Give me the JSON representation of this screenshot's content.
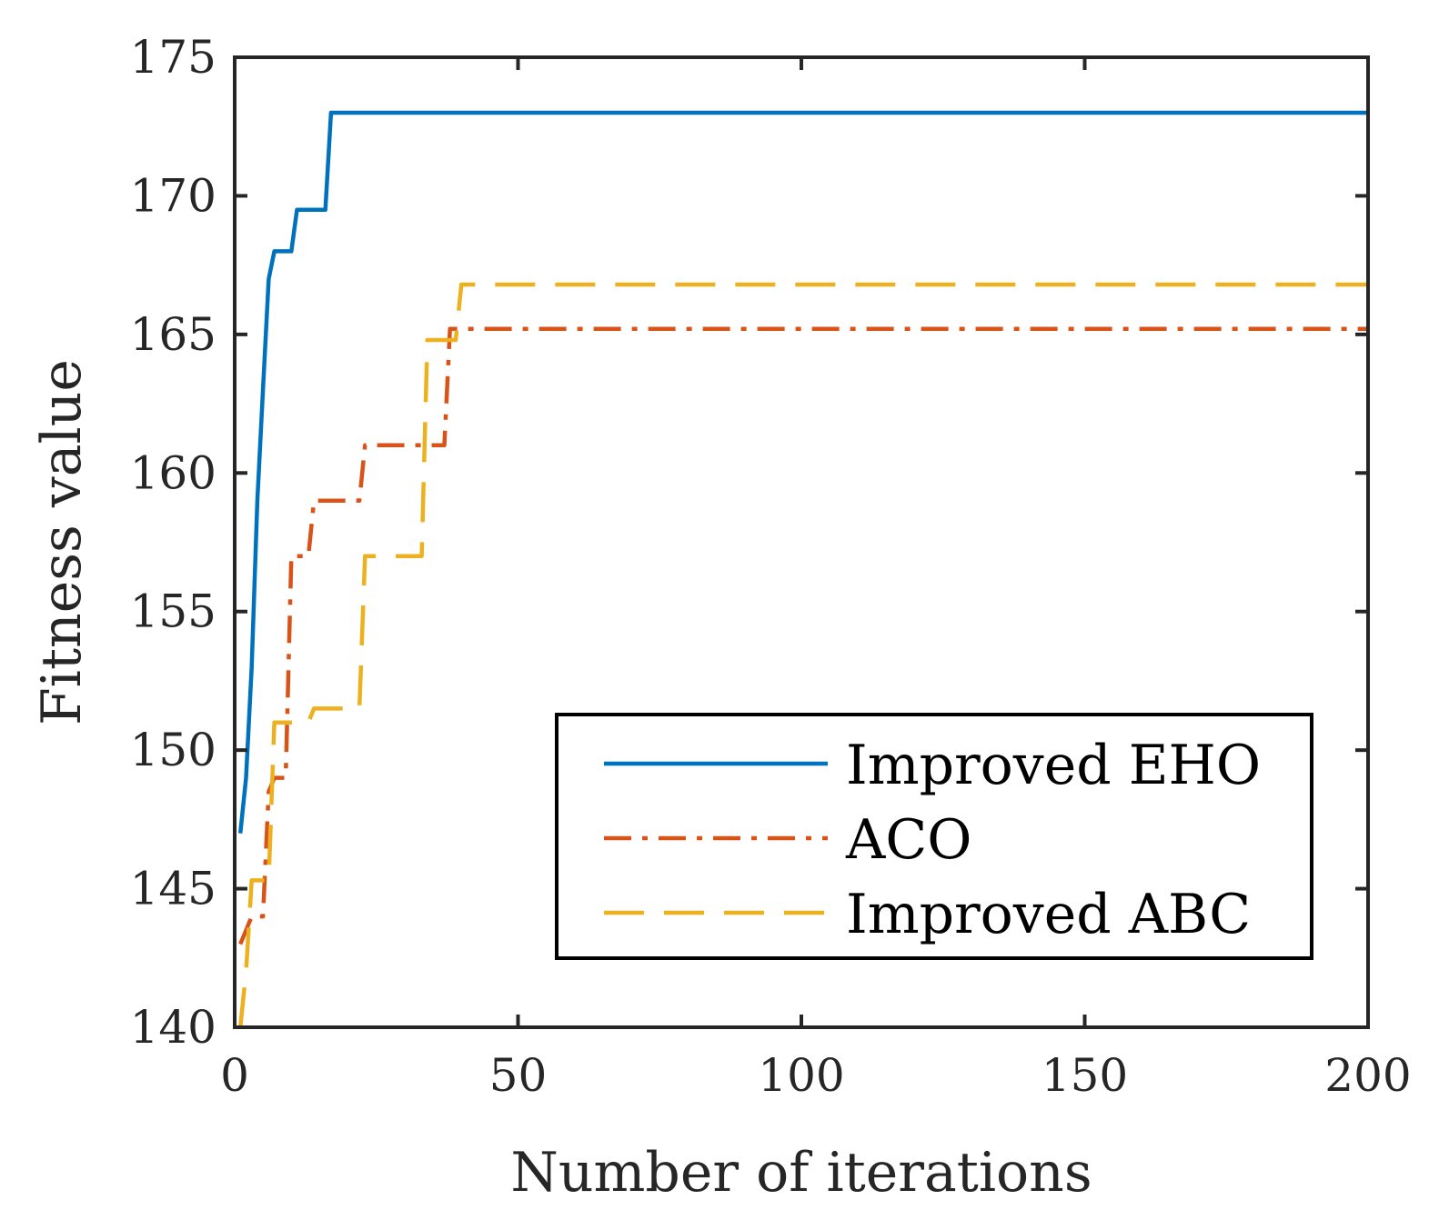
{
  "chart_data": {
    "type": "line",
    "title": "",
    "xlabel": "Number of iterations",
    "ylabel": "Fitness value",
    "xlim": [
      0,
      200
    ],
    "ylim": [
      140,
      175
    ],
    "xticks": [
      0,
      50,
      100,
      150,
      200
    ],
    "yticks": [
      140,
      145,
      150,
      155,
      160,
      165,
      170,
      175
    ],
    "xtick_labels": [
      "0",
      "50",
      "100",
      "150",
      "200"
    ],
    "ytick_labels": [
      "140",
      "145",
      "150",
      "155",
      "160",
      "165",
      "170",
      "175"
    ],
    "grid": false,
    "legend_position": "lower-right",
    "series": [
      {
        "name": "Improved EHO",
        "color": "#0072BD",
        "style": "solid",
        "x": [
          1,
          2,
          3,
          4,
          5,
          6,
          7,
          8,
          9,
          10,
          11,
          12,
          13,
          14,
          15,
          16,
          17,
          18,
          200
        ],
        "y": [
          147,
          149,
          153,
          159,
          163,
          167,
          168,
          168,
          168,
          168,
          169.5,
          169.5,
          169.5,
          169.5,
          169.5,
          169.5,
          173,
          173,
          173
        ]
      },
      {
        "name": "ACO",
        "color": "#D95319",
        "style": "dashdot",
        "x": [
          1,
          2,
          3,
          4,
          5,
          6,
          7,
          8,
          9,
          10,
          11,
          12,
          13,
          14,
          15,
          16,
          17,
          18,
          19,
          20,
          21,
          22,
          23,
          24,
          25,
          26,
          27,
          28,
          29,
          30,
          31,
          32,
          33,
          34,
          35,
          36,
          37,
          38,
          200
        ],
        "y": [
          143,
          143.5,
          144,
          144,
          144,
          148.5,
          149,
          149,
          149,
          157,
          157,
          157,
          157,
          159,
          159,
          159,
          159,
          159,
          159,
          159,
          159,
          159,
          161,
          161,
          161,
          161,
          161,
          161,
          161,
          161,
          161,
          161,
          161,
          161,
          161,
          161,
          161,
          165.2,
          165.2
        ]
      },
      {
        "name": "Improved ABC",
        "color": "#EDB120",
        "style": "dashed",
        "x": [
          1,
          2,
          3,
          4,
          5,
          6,
          7,
          8,
          9,
          10,
          11,
          12,
          13,
          14,
          15,
          16,
          17,
          18,
          19,
          20,
          21,
          22,
          23,
          24,
          25,
          26,
          27,
          28,
          29,
          30,
          31,
          32,
          33,
          34,
          35,
          36,
          37,
          38,
          39,
          40,
          200
        ],
        "y": [
          140,
          142,
          145.3,
          145.3,
          145.3,
          145.3,
          151,
          151,
          151,
          151,
          151,
          151,
          151,
          151.5,
          151.5,
          151.5,
          151.5,
          151.5,
          151.5,
          151.5,
          151.5,
          151.5,
          157,
          157,
          157,
          157,
          157,
          157,
          157,
          157,
          157,
          157,
          157,
          164.8,
          164.8,
          164.8,
          164.8,
          164.8,
          164.8,
          166.8,
          166.8
        ]
      }
    ]
  }
}
